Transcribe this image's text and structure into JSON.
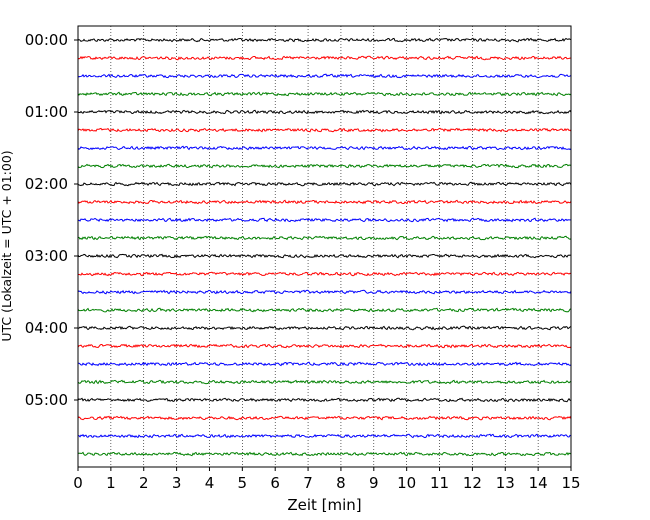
{
  "chart_data": {
    "type": "line",
    "title": "",
    "xlabel": "Zeit  [min]",
    "ylabel": "UTC (Lokalzeit = UTC + 01:00)",
    "xlim": [
      0,
      15
    ],
    "x_ticks": [
      "0",
      "1",
      "2",
      "3",
      "4",
      "5",
      "6",
      "7",
      "8",
      "9",
      "10",
      "11",
      "12",
      "13",
      "14",
      "15"
    ],
    "y_ticks": [
      "00:00",
      "01:00",
      "02:00",
      "03:00",
      "04:00",
      "05:00"
    ],
    "trace_interval_min": 15,
    "grid": "vertical-dotted",
    "series_colors": [
      "#000000",
      "#ff0000",
      "#0000ff",
      "#008000"
    ],
    "series": [
      {
        "start": "00:00",
        "color": "#000000"
      },
      {
        "start": "00:15",
        "color": "#ff0000"
      },
      {
        "start": "00:30",
        "color": "#0000ff"
      },
      {
        "start": "00:45",
        "color": "#008000"
      },
      {
        "start": "01:00",
        "color": "#000000"
      },
      {
        "start": "01:15",
        "color": "#ff0000"
      },
      {
        "start": "01:30",
        "color": "#0000ff"
      },
      {
        "start": "01:45",
        "color": "#008000"
      },
      {
        "start": "02:00",
        "color": "#000000"
      },
      {
        "start": "02:15",
        "color": "#ff0000"
      },
      {
        "start": "02:30",
        "color": "#0000ff"
      },
      {
        "start": "02:45",
        "color": "#008000"
      },
      {
        "start": "03:00",
        "color": "#000000"
      },
      {
        "start": "03:15",
        "color": "#ff0000"
      },
      {
        "start": "03:30",
        "color": "#0000ff"
      },
      {
        "start": "03:45",
        "color": "#008000"
      },
      {
        "start": "04:00",
        "color": "#000000"
      },
      {
        "start": "04:15",
        "color": "#ff0000"
      },
      {
        "start": "04:30",
        "color": "#0000ff"
      },
      {
        "start": "04:45",
        "color": "#008000"
      },
      {
        "start": "05:00",
        "color": "#000000"
      },
      {
        "start": "05:15",
        "color": "#ff0000"
      },
      {
        "start": "05:30",
        "color": "#0000ff"
      },
      {
        "start": "05:45",
        "color": "#008000"
      }
    ]
  }
}
